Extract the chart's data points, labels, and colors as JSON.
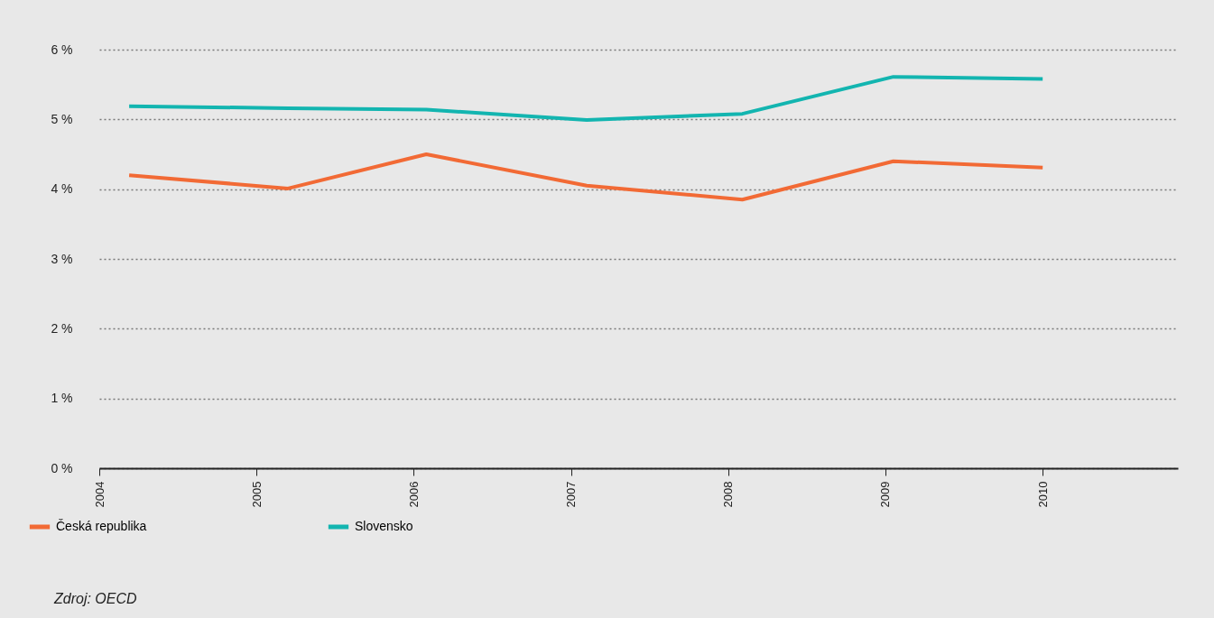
{
  "chart_data": {
    "type": "line",
    "ylim": [
      0,
      6
    ],
    "yticks": [
      {
        "value": 0,
        "label": "0 %"
      },
      {
        "value": 1,
        "label": "1 %"
      },
      {
        "value": 2,
        "label": "2 %"
      },
      {
        "value": 3,
        "label": "3 %"
      },
      {
        "value": 4,
        "label": "4 %"
      },
      {
        "value": 5,
        "label": "5 %"
      },
      {
        "value": 6,
        "label": "6 %"
      }
    ],
    "xlim": [
      2004,
      2010.86
    ],
    "xticks": [
      2004,
      2005,
      2006,
      2007,
      2008,
      2009,
      2010
    ],
    "x": [
      2004.19,
      2005.2,
      2006.08,
      2007.1,
      2008.09,
      2009.05,
      2010.0
    ],
    "series": [
      {
        "name": "Česká republika",
        "color": "#f26a35",
        "values": [
          4.2,
          4.01,
          4.5,
          4.05,
          3.85,
          4.4,
          4.31
        ]
      },
      {
        "name": "Slovensko",
        "color": "#13b5b0",
        "values": [
          5.19,
          5.16,
          5.14,
          4.99,
          5.08,
          5.61,
          5.58
        ]
      }
    ],
    "grid": "y",
    "legend": "bottom left",
    "line_style": "solid",
    "annotations": [
      "Zdroj: OECD"
    ]
  }
}
